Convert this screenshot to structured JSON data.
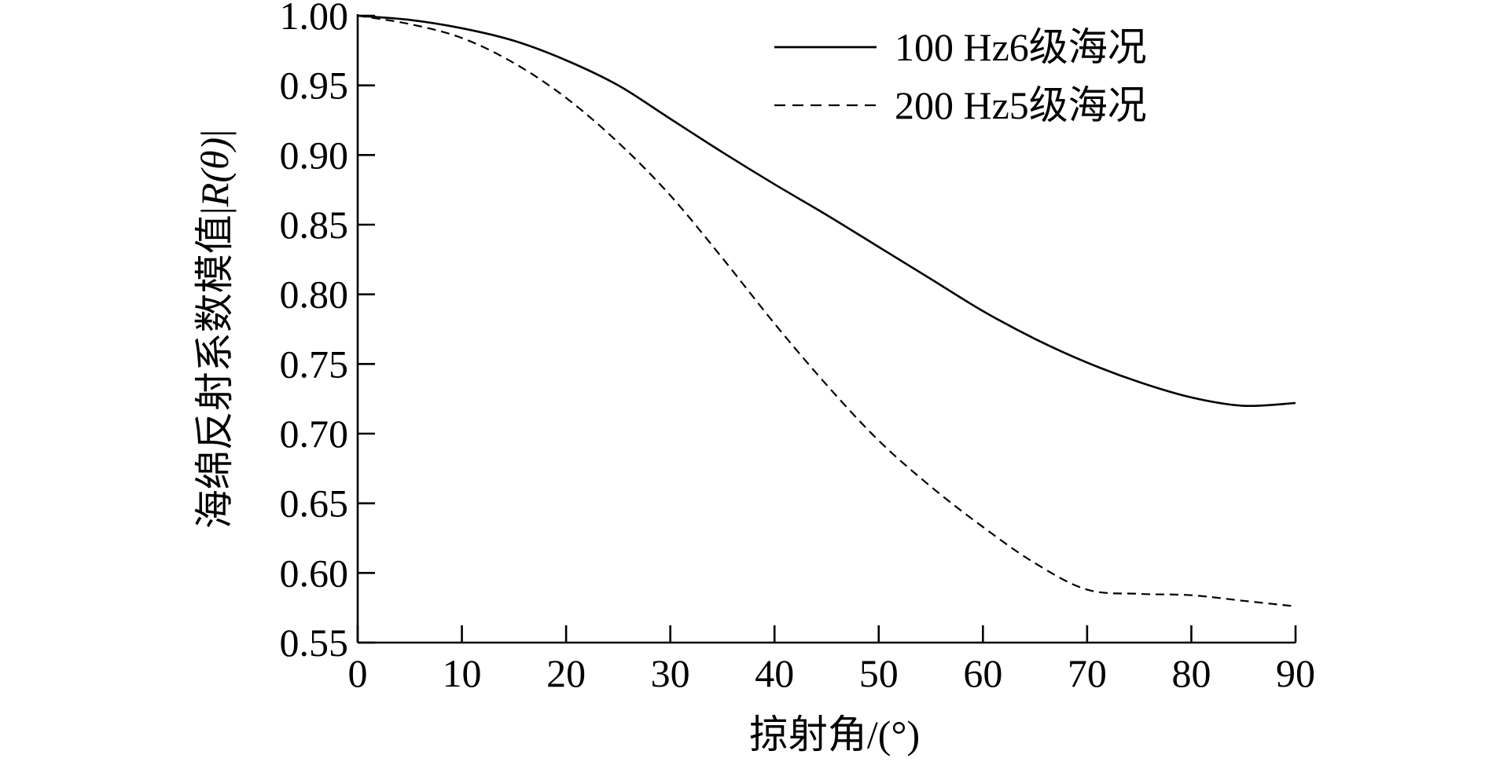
{
  "chart_data": {
    "type": "line",
    "title": "",
    "xlabel": "掠射角/(°)",
    "ylabel": "海绵反射系数模值|R(θ)|",
    "ylabel_parts": {
      "text": "海绵反射系数模值|",
      "italic": "R(θ)",
      "close": "|"
    },
    "xlim": [
      0,
      90
    ],
    "ylim": [
      0.55,
      1.0
    ],
    "xticks": [
      0,
      10,
      20,
      30,
      40,
      50,
      60,
      70,
      80,
      90
    ],
    "xtick_labels": [
      "0",
      "10",
      "20",
      "30",
      "40",
      "50",
      "60",
      "70",
      "80",
      "90"
    ],
    "yticks": [
      0.55,
      0.6,
      0.65,
      0.7,
      0.75,
      0.8,
      0.85,
      0.9,
      0.95,
      1.0
    ],
    "ytick_labels": [
      "0.55",
      "0.60",
      "0.65",
      "0.70",
      "0.75",
      "0.80",
      "0.85",
      "0.90",
      "0.95",
      "1.00"
    ],
    "grid": false,
    "legend_position": "top-right",
    "x": [
      0,
      5,
      10,
      15,
      20,
      25,
      30,
      35,
      40,
      45,
      50,
      55,
      60,
      65,
      70,
      75,
      80,
      85,
      90
    ],
    "series": [
      {
        "name": "100 Hz6级海况",
        "style": "solid",
        "color": "#000000",
        "values": [
          1.0,
          0.997,
          0.991,
          0.982,
          0.968,
          0.95,
          0.926,
          0.902,
          0.879,
          0.857,
          0.834,
          0.811,
          0.788,
          0.768,
          0.751,
          0.737,
          0.726,
          0.72,
          0.722
        ]
      },
      {
        "name": "200 Hz5级海况",
        "style": "dashed",
        "color": "#000000",
        "values": [
          1.0,
          0.994,
          0.984,
          0.966,
          0.941,
          0.909,
          0.871,
          0.826,
          0.779,
          0.735,
          0.695,
          0.662,
          0.633,
          0.607,
          0.588,
          0.585,
          0.584,
          0.58,
          0.576
        ]
      }
    ]
  }
}
